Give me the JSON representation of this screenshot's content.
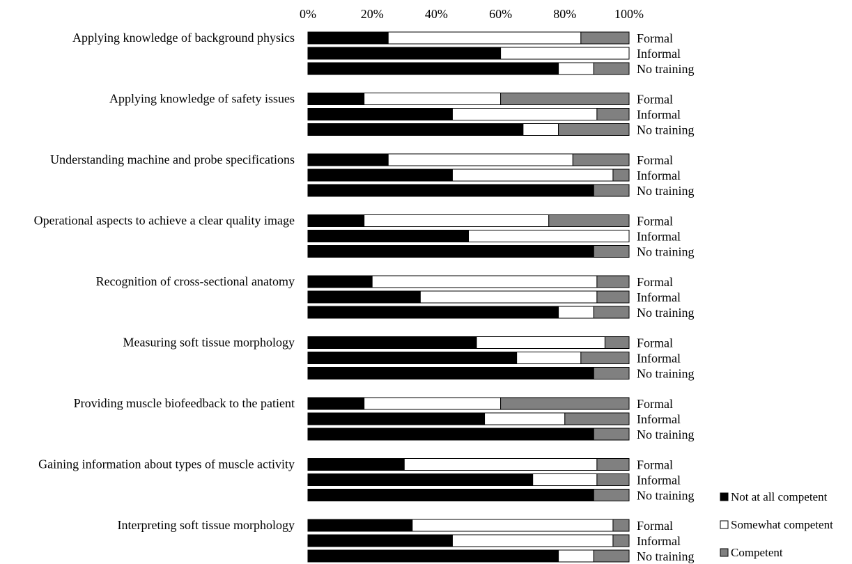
{
  "chart_data": {
    "type": "bar",
    "orientation": "horizontal",
    "stacked": true,
    "percent": true,
    "xlim": [
      0,
      100
    ],
    "x_ticks": [
      "0%",
      "20%",
      "40%",
      "60%",
      "80%",
      "100%"
    ],
    "groups": [
      "Formal",
      "Informal",
      "No training"
    ],
    "series_names": [
      "Not at all competent",
      "Somewhat competent",
      "Competent"
    ],
    "colors": [
      "#000000",
      "#ffffff",
      "#808080"
    ],
    "legend_position": "bottom-right",
    "categories": [
      {
        "label": "Applying knowledge of background physics",
        "rows": [
          [
            25,
            60,
            15
          ],
          [
            60,
            40,
            0
          ],
          [
            78,
            11,
            11
          ]
        ]
      },
      {
        "label": "Applying knowledge of safety issues",
        "rows": [
          [
            17.5,
            42.5,
            40
          ],
          [
            45,
            45,
            10
          ],
          [
            67,
            11,
            22
          ]
        ]
      },
      {
        "label": "Understanding machine and probe specifications",
        "rows": [
          [
            25,
            57.5,
            17.5
          ],
          [
            45,
            50,
            5
          ],
          [
            89,
            0,
            11
          ]
        ]
      },
      {
        "label": "Operational aspects to achieve a clear quality image",
        "rows": [
          [
            17.5,
            57.5,
            25
          ],
          [
            50,
            50,
            0
          ],
          [
            89,
            0,
            11
          ]
        ]
      },
      {
        "label": "Recognition of cross-sectional anatomy",
        "rows": [
          [
            20,
            70,
            10
          ],
          [
            35,
            55,
            10
          ],
          [
            78,
            11,
            11
          ]
        ]
      },
      {
        "label": "Measuring soft tissue morphology",
        "rows": [
          [
            52.5,
            40,
            7.5
          ],
          [
            65,
            20,
            15
          ],
          [
            89,
            0,
            11
          ]
        ]
      },
      {
        "label": "Providing muscle biofeedback to the patient",
        "rows": [
          [
            17.5,
            42.5,
            40
          ],
          [
            55,
            25,
            20
          ],
          [
            89,
            0,
            11
          ]
        ]
      },
      {
        "label": "Gaining information about types of muscle activity",
        "rows": [
          [
            30,
            60,
            10
          ],
          [
            70,
            20,
            10
          ],
          [
            89,
            0,
            11
          ]
        ]
      },
      {
        "label": "Interpreting soft tissue morphology",
        "rows": [
          [
            32.5,
            62.5,
            5
          ],
          [
            45,
            50,
            5
          ],
          [
            78,
            11,
            11
          ]
        ]
      }
    ]
  }
}
